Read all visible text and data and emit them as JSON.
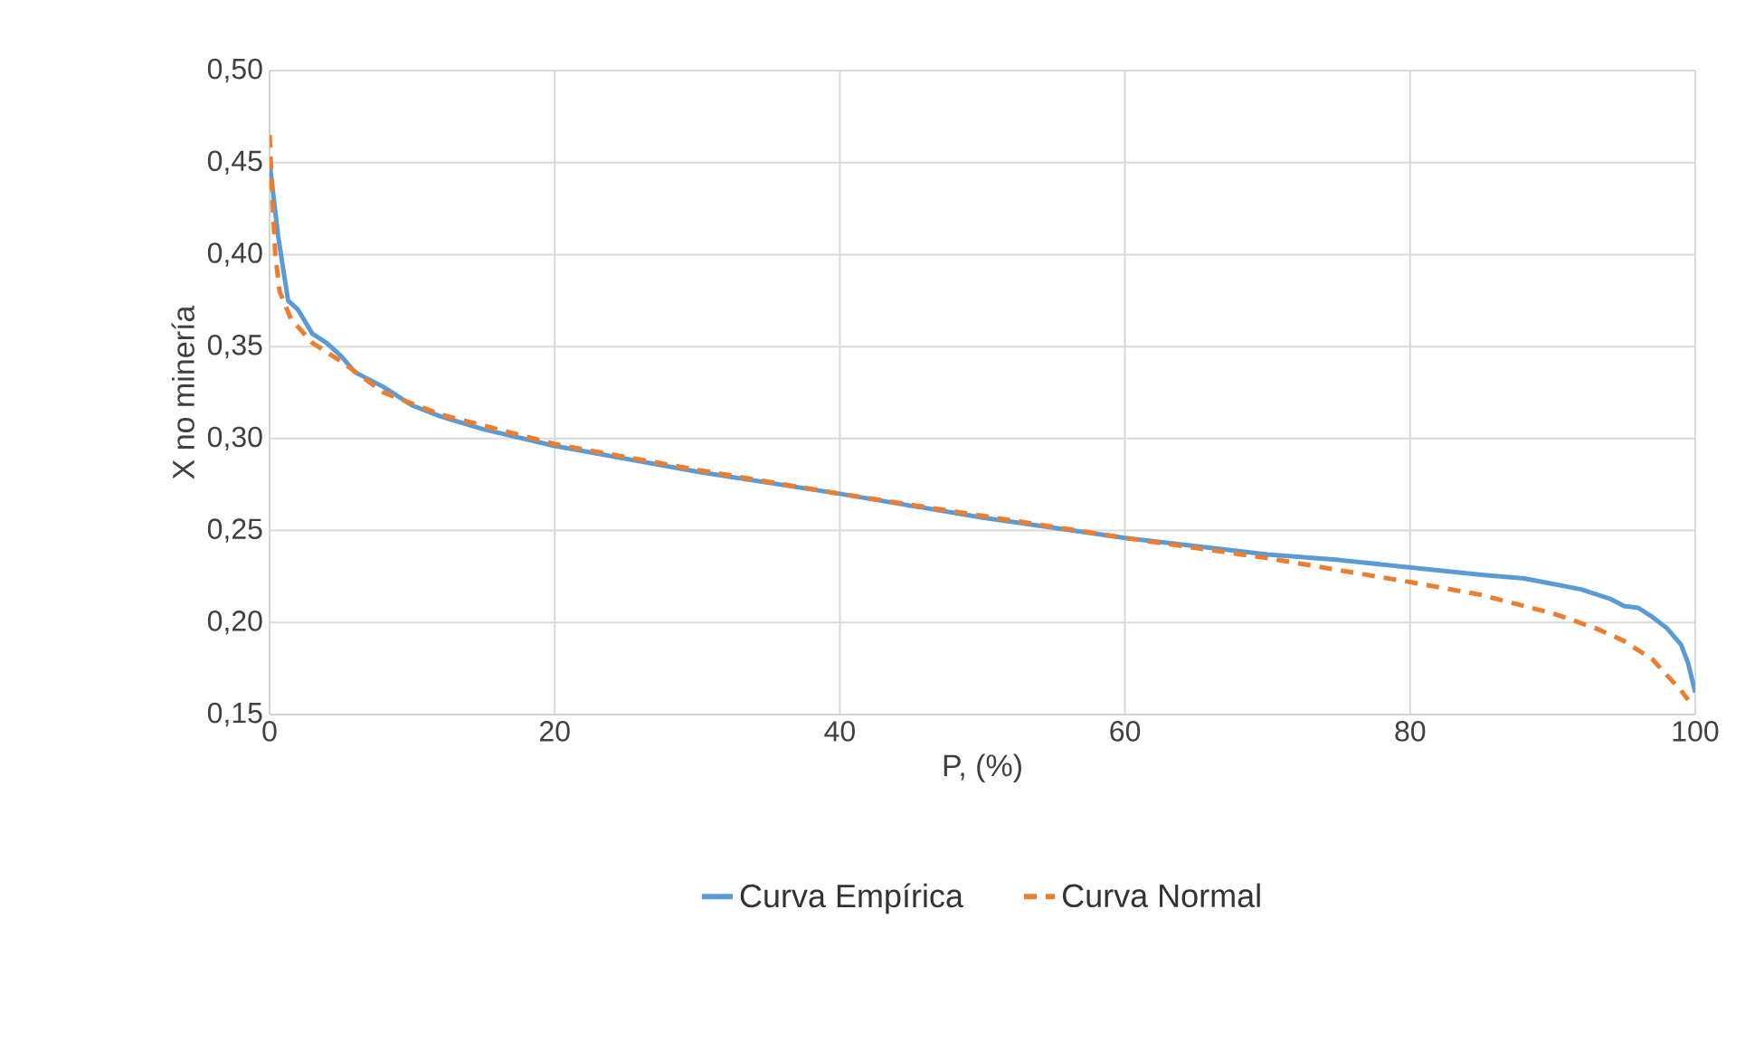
{
  "chart_data": {
    "type": "line",
    "xlabel": "P, (%)",
    "ylabel": "X no minería",
    "xlim": [
      0,
      100
    ],
    "xticks": [
      0,
      20,
      40,
      60,
      80,
      100
    ],
    "ylim": [
      0.15,
      0.5
    ],
    "yticks": [
      {
        "value": 0.15,
        "label": "0,15"
      },
      {
        "value": 0.2,
        "label": "0,20"
      },
      {
        "value": 0.25,
        "label": "0,25"
      },
      {
        "value": 0.3,
        "label": "0,30"
      },
      {
        "value": 0.35,
        "label": "0,35"
      },
      {
        "value": 0.4,
        "label": "0,40"
      },
      {
        "value": 0.45,
        "label": "0,45"
      },
      {
        "value": 0.5,
        "label": "0,50"
      }
    ],
    "grid": true,
    "legend": "bottom",
    "marker": "none",
    "series": [
      {
        "name": "Curva Empírica",
        "color": "#5b9bd5",
        "line_style": "solid",
        "x": [
          0,
          0.3,
          0.6,
          1,
          1.3,
          2,
          3,
          4,
          5,
          6,
          8,
          10,
          12,
          15,
          20,
          25,
          30,
          40,
          50,
          60,
          70,
          75,
          80,
          85,
          88,
          90,
          92,
          94,
          95,
          96,
          97,
          98,
          99,
          99.5,
          100
        ],
        "values": [
          0.45,
          0.43,
          0.41,
          0.39,
          0.375,
          0.37,
          0.357,
          0.352,
          0.345,
          0.336,
          0.328,
          0.318,
          0.312,
          0.305,
          0.296,
          0.289,
          0.282,
          0.27,
          0.257,
          0.246,
          0.237,
          0.234,
          0.23,
          0.226,
          0.224,
          0.221,
          0.218,
          0.213,
          0.209,
          0.208,
          0.203,
          0.197,
          0.188,
          0.178,
          0.162
        ]
      },
      {
        "name": "Curva Normal",
        "color": "#ed7d31",
        "line_style": "dashed",
        "x": [
          0,
          0.2,
          0.4,
          0.7,
          1.5,
          3,
          5,
          8,
          12,
          20,
          30,
          40,
          50,
          60,
          70,
          80,
          85,
          90,
          93,
          95,
          97,
          99,
          99.5
        ],
        "values": [
          0.465,
          0.43,
          0.4,
          0.38,
          0.365,
          0.352,
          0.342,
          0.325,
          0.313,
          0.297,
          0.283,
          0.27,
          0.258,
          0.246,
          0.235,
          0.222,
          0.215,
          0.205,
          0.197,
          0.19,
          0.18,
          0.163,
          0.158
        ]
      }
    ]
  }
}
